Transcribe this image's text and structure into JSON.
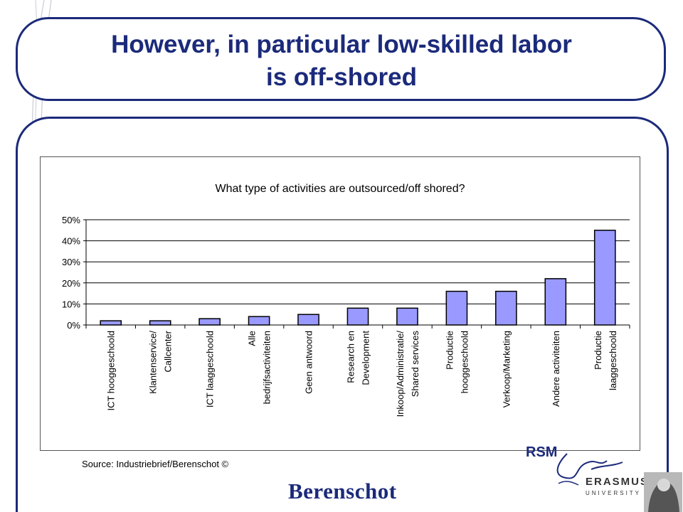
{
  "slide": {
    "title_line1": "However, in particular low-skilled labor",
    "title_line2": "is off-shored",
    "source": "Source: Industriebrief/Berenschot ©",
    "brand": "Berenschot",
    "logo": {
      "rsm": "RSM",
      "university": "ERASMUS",
      "university_sub": "UNIVERSITY"
    },
    "colors": {
      "title": "#1b2a7a",
      "frame": "#1b2a7a",
      "bar_fill": "#9999ff",
      "bar_stroke": "#000000"
    }
  },
  "chart_data": {
    "type": "bar",
    "title": "What type of activities are outsourced/off shored?",
    "categories": [
      [
        "ICT hooggeschoold"
      ],
      [
        "Klantenservice/",
        "Callcenter"
      ],
      [
        "ICT laaggeschoold"
      ],
      [
        "Alle",
        "bedrijfsactiviteiten"
      ],
      [
        "Geen antwoord"
      ],
      [
        "Research en",
        "Development"
      ],
      [
        "Inkoop/Administratie/",
        "Shared services"
      ],
      [
        "Productie",
        "hooggeschoold"
      ],
      [
        "Verkoop/Marketing"
      ],
      [
        "Andere activiteiten"
      ],
      [
        "Productie",
        "laaggeschoold"
      ]
    ],
    "values": [
      2,
      2,
      3,
      4,
      5,
      8,
      8,
      16,
      16,
      22,
      45
    ],
    "yticks": [
      "0%",
      "10%",
      "20%",
      "30%",
      "40%",
      "50%"
    ],
    "ylim": [
      0,
      50
    ],
    "grid": true,
    "legend": "none"
  }
}
